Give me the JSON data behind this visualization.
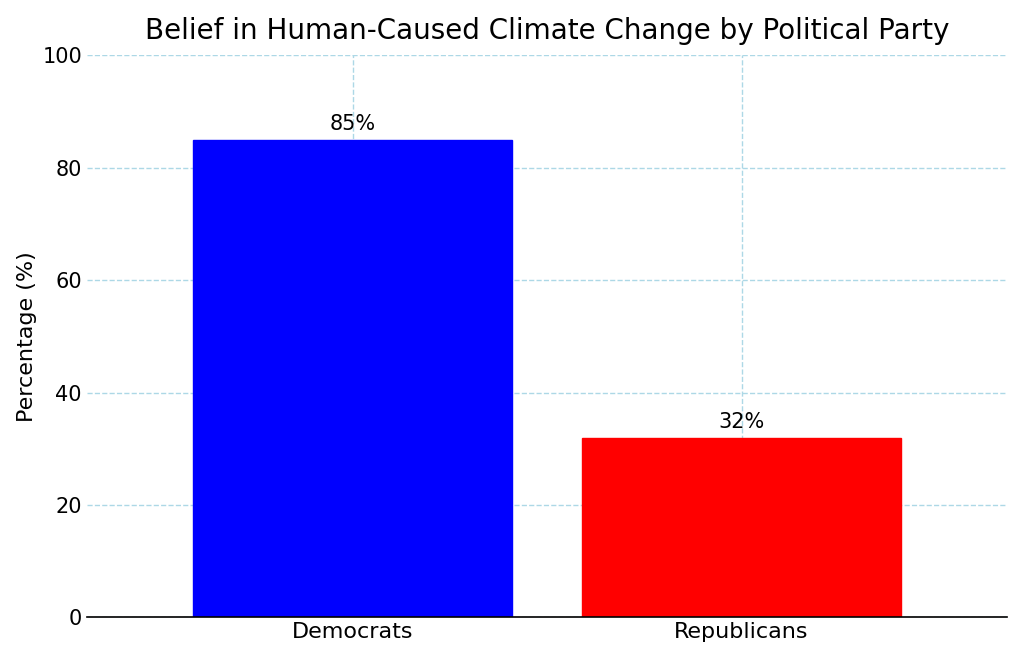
{
  "title": "Belief in Human-Caused Climate Change by Political Party",
  "categories": [
    "Democrats",
    "Republicans"
  ],
  "values": [
    85,
    32
  ],
  "bar_colors": [
    "#0000ff",
    "#ff0000"
  ],
  "ylabel": "Percentage (%)",
  "ylim": [
    0,
    100
  ],
  "yticks": [
    0,
    20,
    40,
    60,
    80,
    100
  ],
  "bar_labels": [
    "85%",
    "32%"
  ],
  "title_fontsize": 20,
  "axis_label_fontsize": 16,
  "tick_fontsize": 15,
  "bar_label_fontsize": 15,
  "xtick_fontsize": 16,
  "grid_color": "#add8e6",
  "grid_linestyle": "--",
  "grid_alpha": 1.0,
  "background_color": "#ffffff",
  "spine_color": "#000000",
  "bar_width": 0.82
}
